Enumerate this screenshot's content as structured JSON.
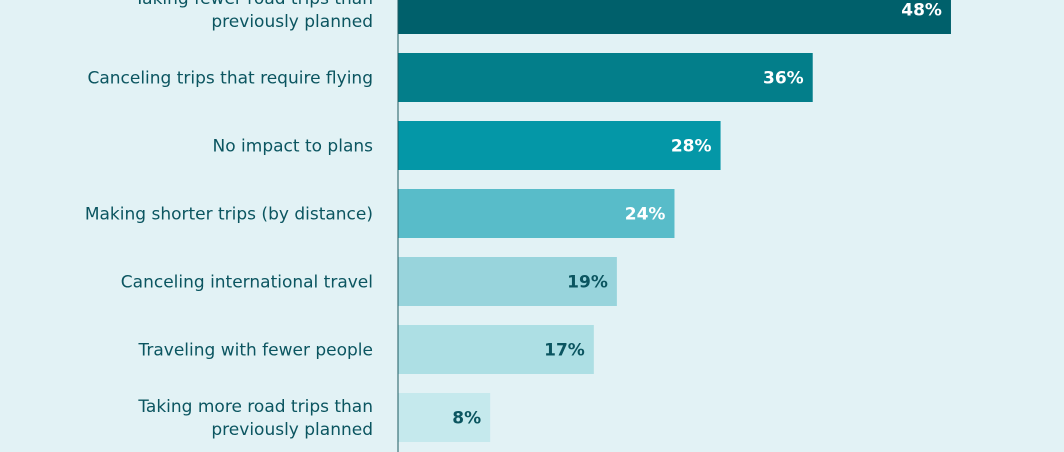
{
  "chart_data": {
    "type": "bar",
    "orientation": "horizontal",
    "categories": [
      [
        "Taking fewer road trips than",
        "previously planned"
      ],
      [
        "Canceling trips that require flying"
      ],
      [
        "No impact to plans"
      ],
      [
        "Making shorter trips (by distance)"
      ],
      [
        "Canceling international travel"
      ],
      [
        "Traveling with fewer people"
      ],
      [
        "Taking more road trips than",
        "previously planned"
      ]
    ],
    "values": [
      48,
      36,
      28,
      24,
      19,
      17,
      8
    ],
    "value_labels": [
      "48%",
      "36%",
      "28%",
      "24%",
      "19%",
      "17%",
      "8%"
    ],
    "xlim": [
      0,
      100
    ],
    "grid": false,
    "bar_colors": [
      "#00606b",
      "#037e8a",
      "#0497a7",
      "#58bcc9",
      "#98d4dc",
      "#addfe4",
      "#c5e9ed"
    ],
    "value_label_colors": [
      "#ffffff",
      "#ffffff",
      "#ffffff",
      "#ffffff",
      "#0b5560",
      "#0b5560",
      "#0b5560"
    ]
  }
}
